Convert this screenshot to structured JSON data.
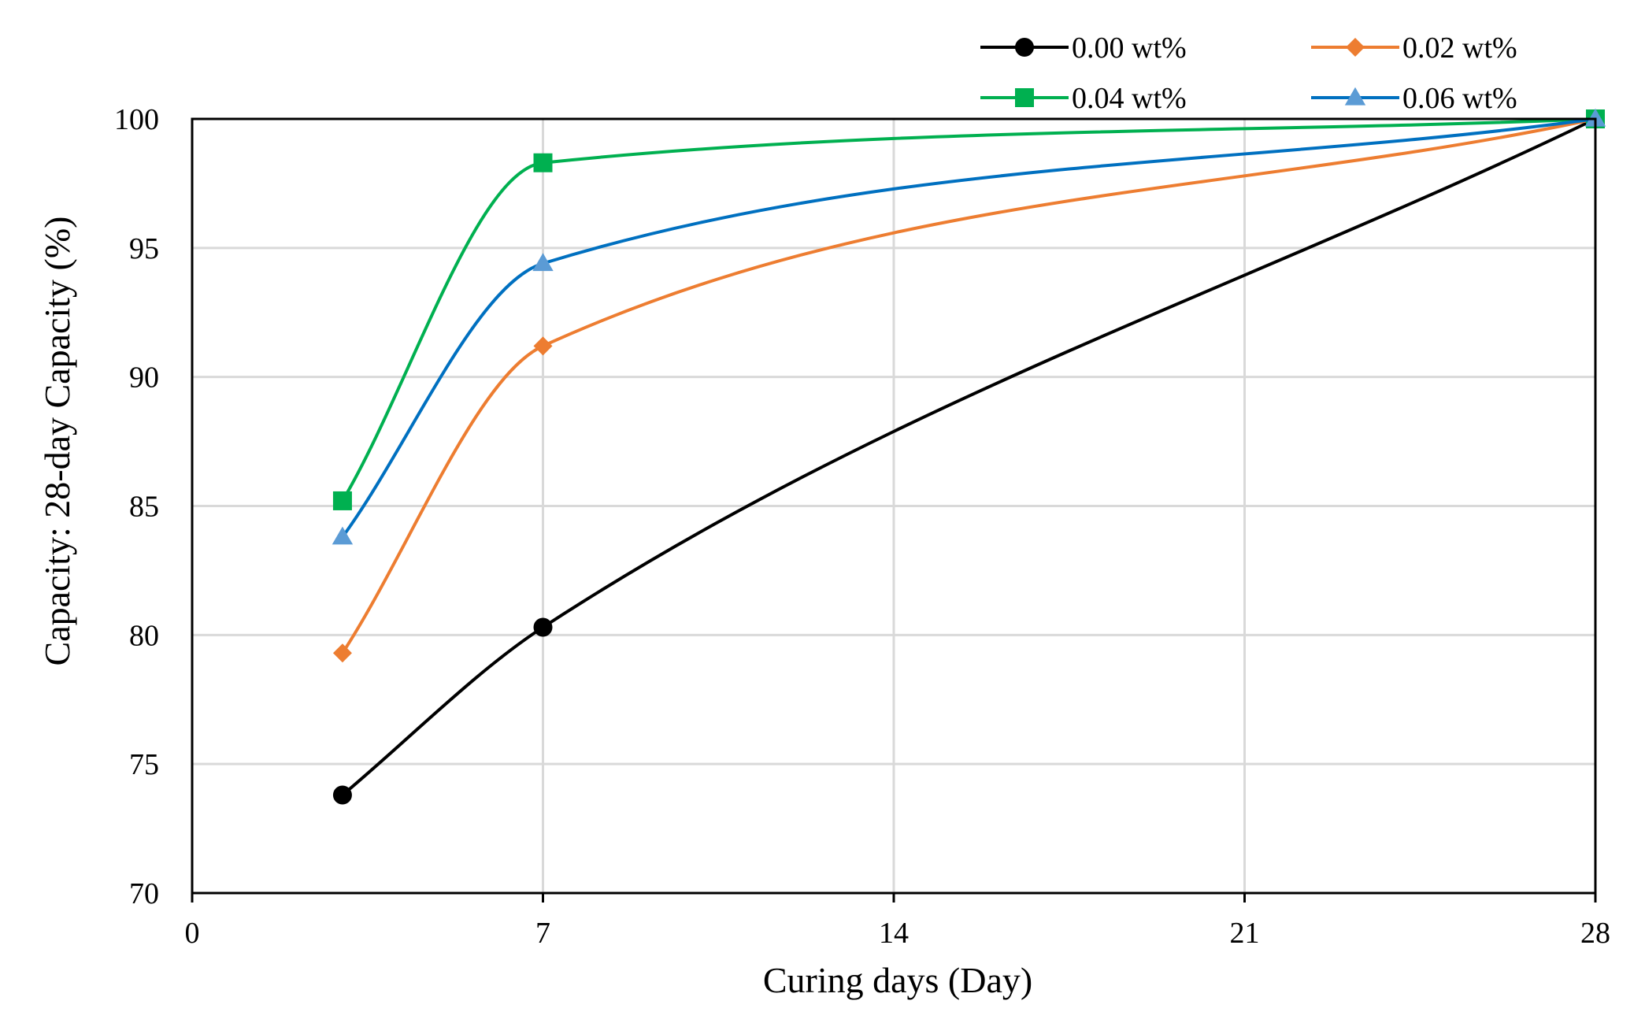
{
  "chart_data": {
    "type": "line",
    "smooth": true,
    "xlabel": "Curing days (Day)",
    "ylabel": "Capacity: 28-day Capacity (%)",
    "xlim": [
      0,
      28
    ],
    "ylim": [
      70,
      100
    ],
    "xticks": [
      "0",
      "7",
      "14",
      "21",
      "28"
    ],
    "yticks": [
      "70",
      "75",
      "80",
      "85",
      "90",
      "95",
      "100"
    ],
    "grid": true,
    "legend_position": "top-right",
    "x": [
      3,
      7,
      28
    ],
    "series": [
      {
        "name": "0.00 wt%",
        "values": [
          73.8,
          80.3,
          100
        ],
        "color": "#000000",
        "marker": "circle"
      },
      {
        "name": "0.02 wt%",
        "values": [
          79.3,
          91.2,
          100
        ],
        "color": "#ED7D31",
        "marker": "diamond"
      },
      {
        "name": "0.04 wt%",
        "values": [
          85.2,
          98.3,
          100
        ],
        "color": "#00B050",
        "marker": "square"
      },
      {
        "name": "0.06 wt%",
        "values": [
          83.8,
          94.4,
          100
        ],
        "color": "#0070C0",
        "marker_color": "#5B9BD5",
        "marker": "triangle"
      }
    ],
    "gridline_color": "#D9D9D9"
  }
}
